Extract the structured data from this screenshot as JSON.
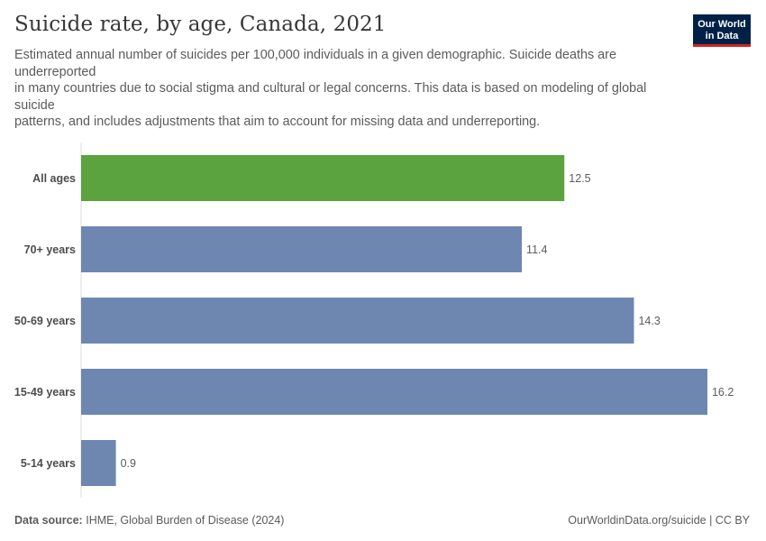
{
  "header": {
    "title": "Suicide rate, by age, Canada, 2021",
    "subtitle_lines": [
      "Estimated annual number of suicides per 100,000 individuals in a given demographic. Suicide deaths are",
      "underreported",
      "in many countries due to social stigma and cultural or legal concerns. This data is based on modeling of global",
      "suicide",
      "patterns, and includes adjustments that aim to account for missing data and underreporting."
    ]
  },
  "logo": {
    "line1": "Our World",
    "line2": "in Data"
  },
  "footer": {
    "source_label": "Data source:",
    "source_text": "IHME, Global Burden of Disease (2024)",
    "right_text": "OurWorldinData.org/suicide | CC BY"
  },
  "colors": {
    "highlight": "#5ba33f",
    "bar": "#6d87b0",
    "axis": "#dddddd"
  },
  "chart_data": {
    "type": "bar",
    "orientation": "horizontal",
    "categories": [
      "All ages",
      "70+ years",
      "50-69 years",
      "15-49 years",
      "5-14 years"
    ],
    "values": [
      12.5,
      11.4,
      14.3,
      16.2,
      0.9
    ],
    "highlight_category": "All ages",
    "xlim": [
      0,
      16.2
    ],
    "grid": false,
    "legend": "none"
  }
}
